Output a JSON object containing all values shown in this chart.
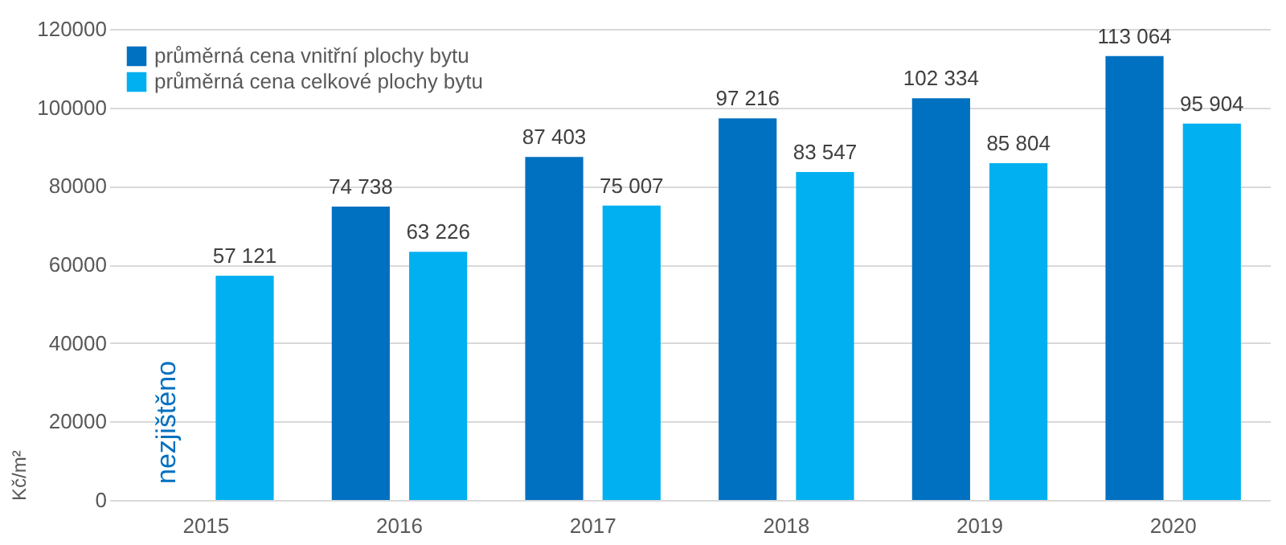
{
  "chart_data": {
    "type": "bar",
    "ylabel": "Kč/m²",
    "categories": [
      "2015",
      "2016",
      "2017",
      "2018",
      "2019",
      "2020"
    ],
    "series": [
      {
        "name": "průměrná cena vnitřní plochy bytu",
        "color": "#0070c0",
        "values": [
          null,
          74738,
          87403,
          97216,
          102334,
          113064
        ],
        "value_labels": [
          null,
          "74 738",
          "87 403",
          "97 216",
          "102 334",
          "113 064"
        ]
      },
      {
        "name": "průměrná cena celkové plochy bytu",
        "color": "#00b0f0",
        "values": [
          57121,
          63226,
          75007,
          83547,
          85804,
          95904
        ],
        "value_labels": [
          "57 121",
          "63 226",
          "75 007",
          "83 547",
          "85 804",
          "95 904"
        ]
      }
    ],
    "ylim": [
      0,
      120000
    ],
    "yticks": [
      0,
      20000,
      40000,
      60000,
      80000,
      100000,
      120000
    ],
    "grid": "y",
    "legend": "top left",
    "annotations": [
      "nezjištěno"
    ]
  }
}
